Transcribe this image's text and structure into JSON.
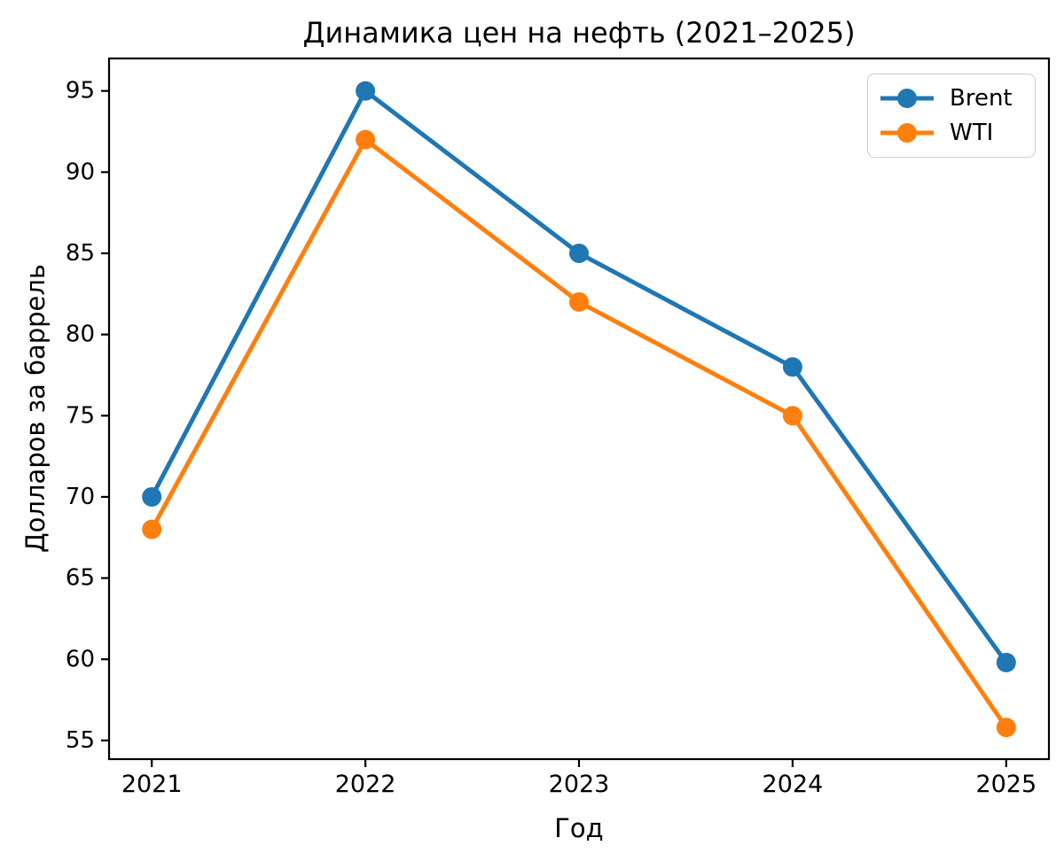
{
  "chart_data": {
    "type": "line",
    "title": "Динамика цен на нефть (2021–2025)",
    "xlabel": "Год",
    "ylabel": "Долларов за баррель",
    "x": [
      2021,
      2022,
      2023,
      2024,
      2025
    ],
    "series": [
      {
        "name": "Brent",
        "color": "#1f77b4",
        "values": [
          70,
          95,
          85,
          78,
          59.8
        ]
      },
      {
        "name": "WTI",
        "color": "#ff7f0e",
        "values": [
          68,
          92,
          82,
          75,
          55.8
        ]
      }
    ],
    "xticks": [
      2021,
      2022,
      2023,
      2024,
      2025
    ],
    "yticks": [
      55,
      60,
      65,
      70,
      75,
      80,
      85,
      90,
      95
    ],
    "xlim": [
      2020.8,
      2025.2
    ],
    "ylim": [
      53.85,
      97.0
    ],
    "grid": false,
    "legend_position": "upper right",
    "marker": "circle",
    "line_width": 5,
    "marker_radius": 11,
    "background": "#ffffff",
    "axis_color": "#000000"
  }
}
